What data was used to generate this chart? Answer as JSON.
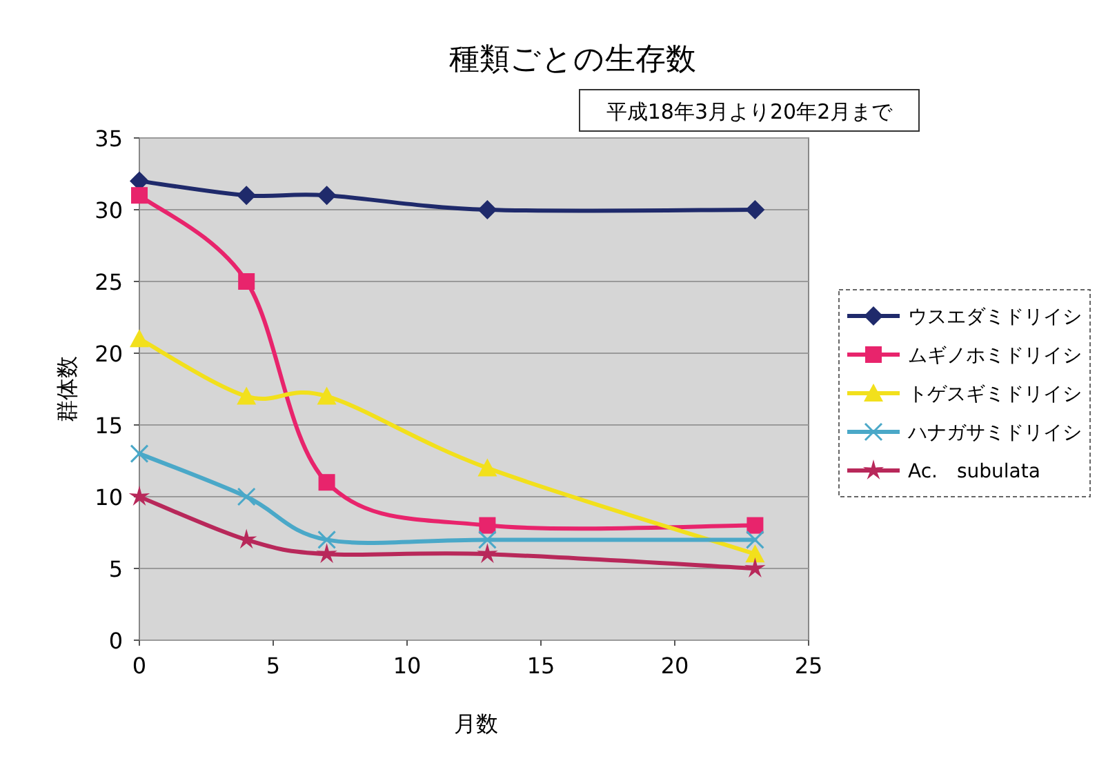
{
  "chart_data": {
    "type": "line",
    "title": "種類ごとの生存数",
    "subtitle": "平成18年3月より20年2月まで",
    "xlabel": "月数",
    "ylabel": "群体数",
    "x": [
      0,
      4,
      7,
      13,
      23
    ],
    "series": [
      {
        "name": "ウスエダミドリイシ",
        "color": "#1f2a6b",
        "marker": "diamond",
        "values": [
          32,
          31,
          31,
          30,
          30
        ]
      },
      {
        "name": "ムギノホミドリイシ",
        "color": "#e8246c",
        "marker": "square",
        "values": [
          31,
          25,
          11,
          8,
          8
        ]
      },
      {
        "name": "トゲスギミドリイシ",
        "color": "#f2e01c",
        "marker": "triangle",
        "values": [
          21,
          17,
          17,
          12,
          6
        ]
      },
      {
        "name": "ハナガサミドリイシ",
        "color": "#4aa8c8",
        "marker": "cross",
        "values": [
          13,
          10,
          7,
          7,
          7
        ]
      },
      {
        "name": "Ac.　subulata",
        "color": "#b8285a",
        "marker": "star",
        "values": [
          10,
          7,
          6,
          6,
          5
        ]
      }
    ],
    "xlim": [
      0,
      25
    ],
    "ylim": [
      0,
      35
    ],
    "xticks": [
      0,
      5,
      10,
      15,
      20,
      25
    ],
    "yticks": [
      0,
      5,
      10,
      15,
      20,
      25,
      30,
      35
    ],
    "grid": "y",
    "legend": "right"
  }
}
